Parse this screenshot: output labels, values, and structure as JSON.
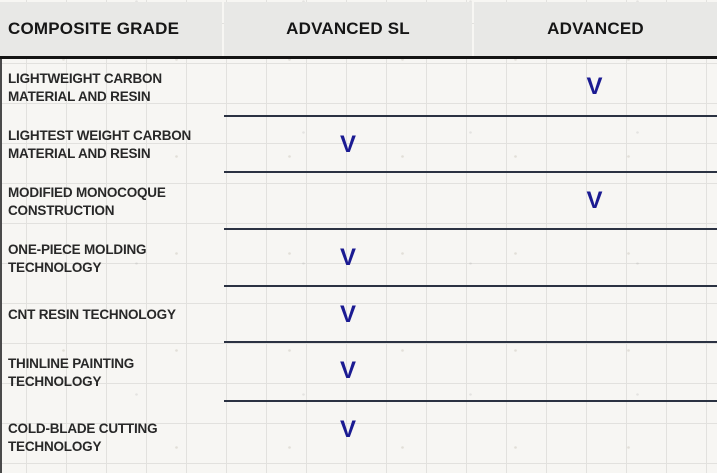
{
  "chart_data": {
    "type": "table",
    "columns": [
      "COMPOSITE GRADE",
      "ADVANCED SL",
      "ADVANCED"
    ],
    "check_mark": "V",
    "rows": [
      {
        "feature": "LIGHTWEIGHT CARBON MATERIAL AND RESIN",
        "advanced_sl": false,
        "advanced": true
      },
      {
        "feature": "LIGHTEST WEIGHT CARBON MATERIAL AND RESIN",
        "advanced_sl": true,
        "advanced": false
      },
      {
        "feature": "MODIFIED MONOCOQUE CONSTRUCTION",
        "advanced_sl": false,
        "advanced": true
      },
      {
        "feature": "ONE-PIECE MOLDING TECHNOLOGY",
        "advanced_sl": true,
        "advanced": false
      },
      {
        "feature": "CNT RESIN TECHNOLOGY",
        "advanced_sl": true,
        "advanced": false
      },
      {
        "feature": "THINLINE PAINTING TECHNOLOGY",
        "advanced_sl": true,
        "advanced": false
      },
      {
        "feature": "COLD-BLADE CUTTING TECHNOLOGY",
        "advanced_sl": true,
        "advanced": false
      }
    ],
    "layout": {
      "legend_position": "none",
      "grid": "on"
    }
  },
  "colors": {
    "check": "#1b1b92",
    "header_bg": "#e8e8e6",
    "header_border": "#141414",
    "row_separator": "#2b3242",
    "paper_bg": "#f7f6f3",
    "grid_line": "#e2e1de"
  }
}
